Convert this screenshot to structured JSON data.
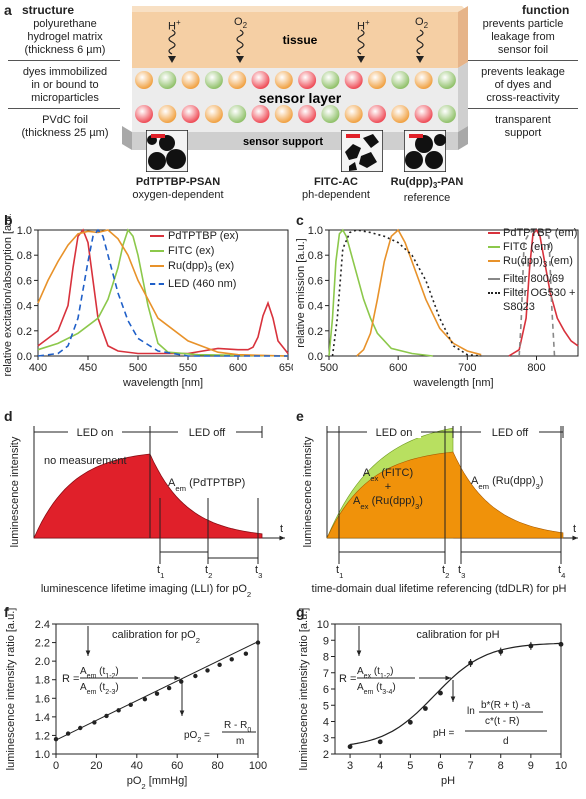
{
  "panels": {
    "a": "a",
    "b": "b",
    "c": "c",
    "d": "d",
    "e": "e",
    "f": "f",
    "g": "g"
  },
  "panel_a": {
    "structure_header": "structure",
    "function_header": "function",
    "tissue": "tissue",
    "sensor_layer": "sensor layer",
    "sensor_support": "sensor support",
    "species": [
      "H",
      "O",
      "H",
      "O"
    ],
    "left_labels": [
      [
        "polyurethane",
        "hydrogel matrix",
        "(thickness 6 µm)"
      ],
      [
        "dyes immobilized",
        "in or bound to",
        "microparticles"
      ],
      [
        "PVdC foil",
        "(thickness 25 µm)"
      ]
    ],
    "right_labels": [
      [
        "prevents particle",
        "leakage from",
        "sensor foil"
      ],
      [
        "prevents leakage",
        "of dyes and",
        "cross-reactivity"
      ],
      [
        "transparent",
        "support"
      ]
    ],
    "particles": [
      {
        "name": "PdTPTBP-PSAN",
        "desc": "oxygen-dependent"
      },
      {
        "name": "FITC-AC",
        "desc": "ph-dependent"
      },
      {
        "name": "Ru(dpp)",
        "sub": "3",
        "name_suffix": "-PAN",
        "desc": "reference"
      }
    ],
    "colors": {
      "tissue": "#f5cfa4",
      "orange": "#f0a040",
      "green": "#8fc068",
      "red": "#ee4a55"
    }
  },
  "chart_data": [
    {
      "panel": "b",
      "type": "line",
      "xlabel": "wavelength [nm]",
      "ylabel": "relative excitation/absorption [a.u.]",
      "xlim": [
        400,
        650
      ],
      "ylim": [
        0,
        1
      ],
      "xticks": [
        "400",
        "450",
        "500",
        "550",
        "600",
        "650"
      ],
      "yticks": [
        "0.0",
        "0.2",
        "0.4",
        "0.6",
        "0.8",
        "1.0"
      ],
      "legend_position": "top-right",
      "series": [
        {
          "name": "PdTPTBP (ex)",
          "color": "#d8323c",
          "dash": "",
          "x": [
            400,
            410,
            420,
            430,
            435,
            440,
            445,
            450,
            455,
            460,
            470,
            480,
            500,
            550,
            580,
            600,
            610,
            615,
            620,
            625,
            630,
            635,
            640,
            650
          ],
          "y": [
            0.08,
            0.14,
            0.2,
            0.4,
            0.7,
            0.95,
            1.0,
            0.9,
            0.6,
            0.3,
            0.08,
            0.04,
            0.02,
            0.02,
            0.06,
            0.05,
            0.05,
            0.07,
            0.15,
            0.32,
            0.42,
            0.3,
            0.12,
            0.02
          ]
        },
        {
          "name": "FITC (ex)",
          "color": "#8cc84b",
          "dash": "",
          "x": [
            400,
            420,
            440,
            460,
            470,
            480,
            485,
            490,
            495,
            500,
            510,
            520,
            530,
            560,
            650
          ],
          "y": [
            0.05,
            0.1,
            0.18,
            0.3,
            0.45,
            0.7,
            0.88,
            1.0,
            0.95,
            0.8,
            0.4,
            0.1,
            0.03,
            0.01,
            0.0
          ]
        },
        {
          "name": "Ru(dpp)",
          "sub": "3",
          "name_suffix": " (ex)",
          "color": "#e8922a",
          "dash": "",
          "x": [
            400,
            410,
            420,
            430,
            440,
            450,
            460,
            470,
            480,
            490,
            500,
            520,
            550,
            580,
            600,
            650
          ],
          "y": [
            0.42,
            0.6,
            0.75,
            0.88,
            0.97,
            0.99,
            0.98,
            1.0,
            0.93,
            0.8,
            0.6,
            0.3,
            0.12,
            0.03,
            0.01,
            0.0
          ]
        },
        {
          "name": "LED (460 nm)",
          "color": "#1f5fc8",
          "dash": "6,4",
          "x": [
            400,
            420,
            430,
            440,
            450,
            455,
            460,
            465,
            470,
            480,
            490,
            500,
            520,
            550,
            650
          ],
          "y": [
            0.0,
            0.02,
            0.08,
            0.3,
            0.75,
            0.95,
            1.0,
            0.95,
            0.8,
            0.5,
            0.28,
            0.14,
            0.04,
            0.0,
            0.0
          ]
        }
      ]
    },
    {
      "panel": "c",
      "type": "line",
      "xlabel": "wavelength [nm]",
      "ylabel": "relative emission [a.u.]",
      "xlim": [
        500,
        860
      ],
      "ylim": [
        0,
        1
      ],
      "xticks": [
        "500",
        "600",
        "700",
        "800"
      ],
      "yticks": [
        "0.0",
        "0.2",
        "0.4",
        "0.6",
        "0.8",
        "1.0"
      ],
      "legend_position": "top-right",
      "series": [
        {
          "name": "PdTPTBP (em)",
          "color": "#d8323c",
          "dash": "",
          "x": [
            760,
            775,
            785,
            790,
            795,
            800,
            805,
            810,
            820,
            830,
            840,
            850,
            860
          ],
          "y": [
            0.0,
            0.05,
            0.3,
            0.7,
            0.97,
            1.0,
            0.95,
            0.8,
            0.5,
            0.3,
            0.2,
            0.12,
            0.08
          ]
        },
        {
          "name": "FITC (em)",
          "color": "#8cc84b",
          "dash": "",
          "x": [
            500,
            505,
            510,
            515,
            520,
            525,
            530,
            540,
            550,
            560,
            570,
            590,
            620,
            650
          ],
          "y": [
            0.0,
            0.3,
            0.75,
            0.97,
            1.0,
            0.95,
            0.85,
            0.65,
            0.45,
            0.3,
            0.18,
            0.06,
            0.02,
            0.0
          ]
        },
        {
          "name": "Ru(dpp)",
          "sub": "3",
          "name_suffix": " (em)",
          "color": "#e8922a",
          "dash": "",
          "x": [
            540,
            550,
            560,
            570,
            580,
            590,
            600,
            610,
            620,
            640,
            660,
            680,
            700,
            720
          ],
          "y": [
            0.0,
            0.05,
            0.18,
            0.45,
            0.75,
            0.95,
            1.0,
            0.9,
            0.75,
            0.45,
            0.22,
            0.1,
            0.04,
            0.01
          ]
        },
        {
          "name": "Filter 800/69",
          "color": "#888888",
          "dash": "5,4",
          "x": [
            775,
            778,
            782,
            790,
            800,
            810,
            818,
            822,
            826
          ],
          "y": [
            0.0,
            0.3,
            0.9,
            0.98,
            1.0,
            0.98,
            0.95,
            0.4,
            0.0
          ]
        },
        {
          "name": "Filter OG530 +",
          "name2": "S8023",
          "color": "#222222",
          "dash": "2,3",
          "x": [
            505,
            512,
            520,
            530,
            540,
            560,
            580,
            600,
            620,
            640,
            660,
            680,
            700,
            720
          ],
          "y": [
            0.0,
            0.3,
            0.85,
            0.98,
            1.0,
            0.98,
            0.95,
            0.9,
            0.8,
            0.6,
            0.3,
            0.08,
            0.01,
            0.0
          ]
        }
      ]
    },
    {
      "panel": "d",
      "type": "area",
      "ylabel": "luminescence intensity",
      "xlabel": "t",
      "led_on": "LED on",
      "led_off": "LED off",
      "no_measurement": "no measurement",
      "area_label": "A",
      "area_sub": "em",
      "area_suffix": " (PdTPTBP)",
      "ticks": [
        {
          "t": "t",
          "s": "1"
        },
        {
          "t": "t",
          "s": "2"
        },
        {
          "t": "t",
          "s": "3"
        }
      ],
      "caption": "luminescence lifetime imaging (LLI) for pO",
      "caption_sub": "2",
      "color": "#e0202a"
    },
    {
      "panel": "e",
      "type": "area",
      "ylabel": "luminescence intensity",
      "xlabel": "t",
      "led_on": "LED on",
      "led_off": "LED off",
      "label1": "A",
      "label1_sub": "ex",
      "label1_suffix": " (FITC)",
      "plus": "+",
      "label2": "A",
      "label2_sub": "ex",
      "label2_suffix": " (Ru(dpp)",
      "label2_sub2": "3",
      "label2_end": ")",
      "label3": "A",
      "label3_sub": "em",
      "label3_suffix": " (Ru(dpp)",
      "label3_sub2": "3",
      "label3_end": ")",
      "ticks": [
        {
          "t": "t",
          "s": "1"
        },
        {
          "t": "t",
          "s": "2"
        },
        {
          "t": "t",
          "s": "3"
        },
        {
          "t": "t",
          "s": "4"
        }
      ],
      "caption": "time-domain dual lifetime referencing (tdDLR) for pH",
      "colors": {
        "green": "#b8e060",
        "orange": "#f0920a"
      }
    },
    {
      "panel": "f",
      "type": "scatter",
      "title": "calibration for pO",
      "title_sub": "2",
      "xlabel": "pO",
      "xlabel_sub": "2",
      "xlabel_suffix": " [mmHg]",
      "ylabel": "luminescence intensity ratio [a.u.]",
      "xlim": [
        0,
        100
      ],
      "ylim": [
        1.0,
        2.4
      ],
      "xticks": [
        "0",
        "20",
        "40",
        "60",
        "80",
        "100"
      ],
      "yticks": [
        "1.0",
        "1.2",
        "1.4",
        "1.6",
        "1.8",
        "2.0",
        "2.2",
        "2.4"
      ],
      "x": [
        0,
        6,
        12,
        19,
        25,
        31,
        37,
        44,
        50,
        56,
        62,
        69,
        75,
        81,
        87,
        94,
        100
      ],
      "y": [
        1.16,
        1.22,
        1.28,
        1.34,
        1.41,
        1.47,
        1.53,
        1.59,
        1.65,
        1.71,
        1.78,
        1.84,
        1.9,
        1.96,
        2.02,
        2.08,
        2.2
      ],
      "fit": [
        [
          0,
          1.15
        ],
        [
          100,
          2.21
        ]
      ],
      "eq_R": "R =",
      "eq_A": "A",
      "eq_Asub": "em",
      "eq_t1": " (t",
      "eq_t1sub": "1-2",
      "eq_t1end": ")",
      "eq_t2": " (t",
      "eq_t2sub": "2-3",
      "eq_t2end": ")",
      "eq2_lhs": "pO",
      "eq2_lhs_sub": "2",
      "eq2_eq": " =",
      "eq2_num": "R - R",
      "eq2_num_sub": "0",
      "eq2_den": "m"
    },
    {
      "panel": "g",
      "type": "scatter",
      "title": "calibration for pH",
      "xlabel": "pH",
      "ylabel": "luminescence intensity ratio [a.u.]",
      "xlim": [
        2.5,
        10
      ],
      "ylim": [
        2,
        10
      ],
      "xticks": [
        "3",
        "4",
        "5",
        "6",
        "7",
        "8",
        "9",
        "10"
      ],
      "yticks": [
        "2",
        "3",
        "4",
        "5",
        "6",
        "7",
        "8",
        "9",
        "10"
      ],
      "x": [
        3,
        4,
        5,
        5.5,
        6,
        7,
        8,
        9,
        10
      ],
      "y": [
        2.45,
        2.75,
        3.95,
        4.8,
        5.75,
        7.6,
        8.3,
        8.65,
        8.75
      ],
      "curve_a": 2.35,
      "curve_b": 6.5,
      "curve_c": 1.5,
      "curve_d": 0.85,
      "eq_R": "R =",
      "eq_Anum": "A",
      "eq_Anum_sub": "ex",
      "eq_num_t": " (t",
      "eq_num_tsub": "1-2",
      "eq_num_tend": ")",
      "eq_Aden": "A",
      "eq_Aden_sub": "em",
      "eq_den_t": " (t",
      "eq_den_tsub": "3-4",
      "eq_den_tend": ")",
      "eq2_lhs": "pH =",
      "eq2_ln": "ln",
      "eq2_num": "b*(R + t) -a",
      "eq2_den": "c*(t - R)",
      "eq2_d": "d"
    }
  ]
}
